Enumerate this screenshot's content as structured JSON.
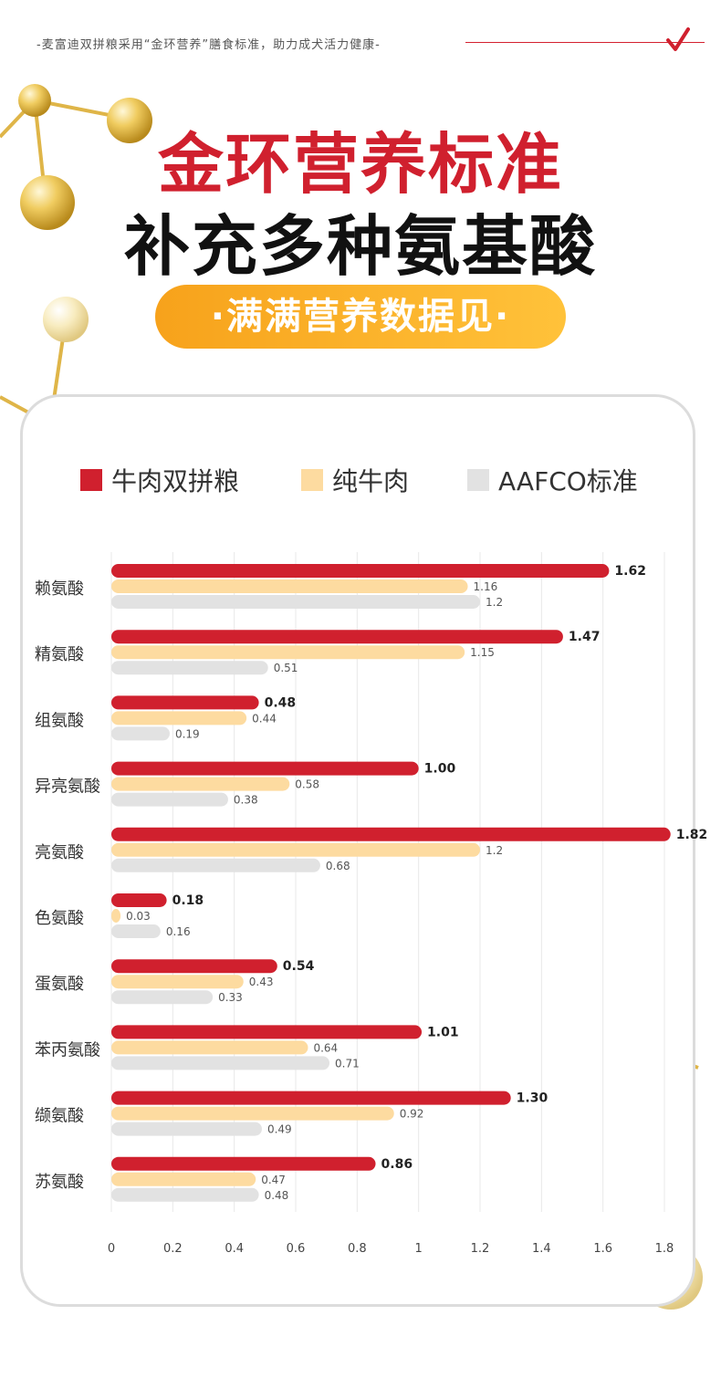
{
  "header": {
    "tagline": "-麦富迪双拼粮采用“金环营养”膳食标准，助力成犬活力健康-",
    "title": "金环营养标准",
    "subtitle": "补充多种氨基酸",
    "badge": "·满满营养数据见·"
  },
  "colors": {
    "brand_red": "#d0202e",
    "orange": "#f7a21b",
    "beige": "#fddba0",
    "grey": "#e2e2e2"
  },
  "icons": [
    "check-icon",
    "molecule-decoration"
  ],
  "chart_data": {
    "type": "bar",
    "orientation": "horizontal",
    "categories": [
      "赖氨酸",
      "精氨酸",
      "组氨酸",
      "异亮氨酸",
      "亮氨酸",
      "色氨酸",
      "蛋氨酸",
      "苯丙氨酸",
      "缬氨酸",
      "苏氨酸"
    ],
    "series": [
      {
        "name": "牛肉双拼粮",
        "color": "#d0202e",
        "values": [
          1.62,
          1.47,
          0.48,
          1.0,
          1.82,
          0.18,
          0.54,
          1.01,
          1.3,
          0.86
        ],
        "labels": [
          "1.62",
          "1.47",
          "0.48",
          "1.00",
          "1.82",
          "0.18",
          "0.54",
          "1.01",
          "1.30",
          "0.86"
        ]
      },
      {
        "name": "纯牛肉",
        "color": "#fddba0",
        "values": [
          1.16,
          1.15,
          0.44,
          0.58,
          1.2,
          0.03,
          0.43,
          0.64,
          0.92,
          0.47
        ],
        "labels": [
          "1.16",
          "1.15",
          "0.44",
          "0.58",
          "1.2",
          "0.03",
          "0.43",
          "0.64",
          "0.92",
          "0.47"
        ]
      },
      {
        "name": "AAFCO标准",
        "color": "#e2e2e2",
        "values": [
          1.2,
          0.51,
          0.19,
          0.38,
          0.68,
          0.16,
          0.33,
          0.71,
          0.49,
          0.48
        ],
        "labels": [
          "1.2",
          "0.51",
          "0.19",
          "0.38",
          "0.68",
          "0.16",
          "0.33",
          "0.71",
          "0.49",
          "0.48"
        ]
      }
    ],
    "xticks": [
      "0",
      "0.2",
      "0.4",
      "0.6",
      "0.8",
      "1",
      "1.2",
      "1.4",
      "1.6",
      "1.8"
    ],
    "xlim": [
      0,
      1.8
    ],
    "grid": true,
    "legend": "top"
  }
}
